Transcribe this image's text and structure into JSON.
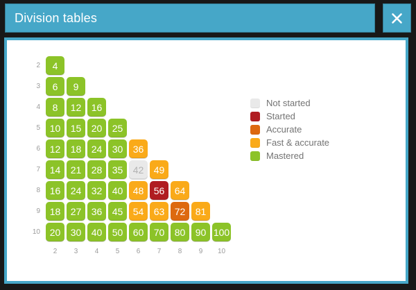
{
  "window": {
    "title": "Division tables"
  },
  "colors": {
    "background": "#181818",
    "titlebar": "#46a7c8",
    "panel_border": "#46a7c8",
    "status": {
      "not_started": "#e9e9e9",
      "started": "#b01c21",
      "accurate": "#dd6910",
      "fast_accurate": "#faaa19",
      "mastered": "#8cc328"
    },
    "not_started_text": "#b3b3b3",
    "axis_label_text": "#9b9b9b",
    "legend_text": "#737373"
  },
  "legend": {
    "items": [
      {
        "label": "Not started",
        "status": "not_started"
      },
      {
        "label": "Started",
        "status": "started"
      },
      {
        "label": "Accurate",
        "status": "accurate"
      },
      {
        "label": "Fast & accurate",
        "status": "fast_accurate"
      },
      {
        "label": "Mastered",
        "status": "mastered"
      }
    ]
  },
  "grid": {
    "column_labels": [
      "2",
      "3",
      "4",
      "5",
      "6",
      "7",
      "8",
      "9",
      "10"
    ],
    "rows": [
      {
        "label": "2",
        "cells": [
          {
            "value": "4",
            "status": "mastered"
          }
        ]
      },
      {
        "label": "3",
        "cells": [
          {
            "value": "6",
            "status": "mastered"
          },
          {
            "value": "9",
            "status": "mastered"
          }
        ]
      },
      {
        "label": "4",
        "cells": [
          {
            "value": "8",
            "status": "mastered"
          },
          {
            "value": "12",
            "status": "mastered"
          },
          {
            "value": "16",
            "status": "mastered"
          }
        ]
      },
      {
        "label": "5",
        "cells": [
          {
            "value": "10",
            "status": "mastered"
          },
          {
            "value": "15",
            "status": "mastered"
          },
          {
            "value": "20",
            "status": "mastered"
          },
          {
            "value": "25",
            "status": "mastered"
          }
        ]
      },
      {
        "label": "6",
        "cells": [
          {
            "value": "12",
            "status": "mastered"
          },
          {
            "value": "18",
            "status": "mastered"
          },
          {
            "value": "24",
            "status": "mastered"
          },
          {
            "value": "30",
            "status": "mastered"
          },
          {
            "value": "36",
            "status": "fast_accurate"
          }
        ]
      },
      {
        "label": "7",
        "cells": [
          {
            "value": "14",
            "status": "mastered"
          },
          {
            "value": "21",
            "status": "mastered"
          },
          {
            "value": "28",
            "status": "mastered"
          },
          {
            "value": "35",
            "status": "mastered"
          },
          {
            "value": "42",
            "status": "not_started"
          },
          {
            "value": "49",
            "status": "fast_accurate"
          }
        ]
      },
      {
        "label": "8",
        "cells": [
          {
            "value": "16",
            "status": "mastered"
          },
          {
            "value": "24",
            "status": "mastered"
          },
          {
            "value": "32",
            "status": "mastered"
          },
          {
            "value": "40",
            "status": "mastered"
          },
          {
            "value": "48",
            "status": "fast_accurate"
          },
          {
            "value": "56",
            "status": "started"
          },
          {
            "value": "64",
            "status": "fast_accurate"
          }
        ]
      },
      {
        "label": "9",
        "cells": [
          {
            "value": "18",
            "status": "mastered"
          },
          {
            "value": "27",
            "status": "mastered"
          },
          {
            "value": "36",
            "status": "mastered"
          },
          {
            "value": "45",
            "status": "mastered"
          },
          {
            "value": "54",
            "status": "fast_accurate"
          },
          {
            "value": "63",
            "status": "fast_accurate"
          },
          {
            "value": "72",
            "status": "accurate"
          },
          {
            "value": "81",
            "status": "fast_accurate"
          }
        ]
      },
      {
        "label": "10",
        "cells": [
          {
            "value": "20",
            "status": "mastered"
          },
          {
            "value": "30",
            "status": "mastered"
          },
          {
            "value": "40",
            "status": "mastered"
          },
          {
            "value": "50",
            "status": "mastered"
          },
          {
            "value": "60",
            "status": "mastered"
          },
          {
            "value": "70",
            "status": "mastered"
          },
          {
            "value": "80",
            "status": "mastered"
          },
          {
            "value": "90",
            "status": "mastered"
          },
          {
            "value": "100",
            "status": "mastered"
          }
        ]
      }
    ]
  }
}
